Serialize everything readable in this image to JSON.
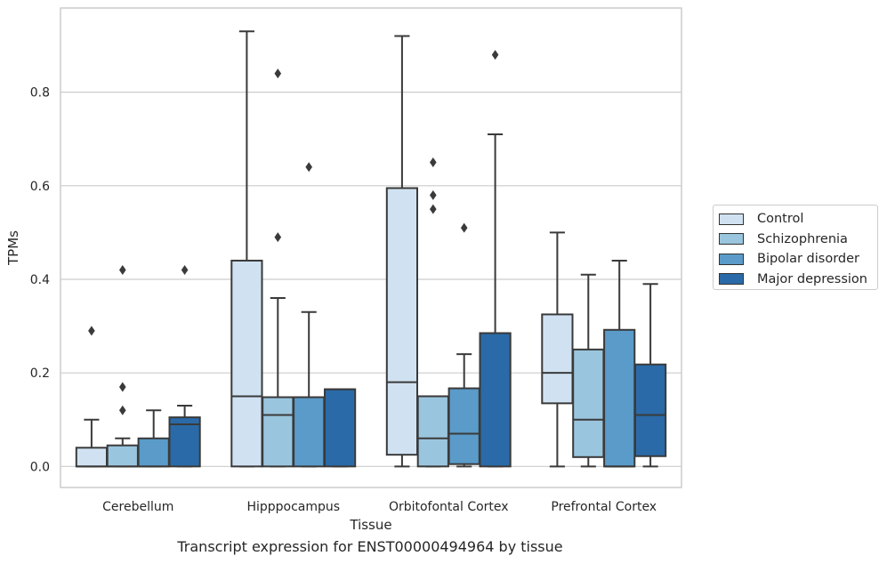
{
  "caption": "Transcript expression for ENST00000494964 by tissue",
  "chart_data": {
    "type": "boxplot",
    "title": "",
    "xlabel": "Tissue",
    "ylabel": "TPMs",
    "ylim": [
      -0.045,
      0.98
    ],
    "yticks": [
      0.0,
      0.2,
      0.4,
      0.6,
      0.8
    ],
    "ytick_labels": [
      "0.0",
      "0.2",
      "0.4",
      "0.6",
      "0.8"
    ],
    "grid": "horizontal",
    "legend_position": "outside-right",
    "categories": [
      "Cerebellum",
      "Hipppocampus",
      "Orbitofontal Cortex",
      "Prefrontal Cortex"
    ],
    "series": [
      {
        "name": "Control",
        "color": "#d0e2f2",
        "boxes": [
          {
            "whisker_low": 0.0,
            "q1": 0.0,
            "median": 0.0,
            "q3": 0.04,
            "whisker_high": 0.1,
            "outliers": [
              0.29
            ]
          },
          {
            "whisker_low": 0.0,
            "q1": 0.0,
            "median": 0.15,
            "q3": 0.44,
            "whisker_high": 0.93,
            "outliers": []
          },
          {
            "whisker_low": 0.0,
            "q1": 0.025,
            "median": 0.18,
            "q3": 0.595,
            "whisker_high": 0.92,
            "outliers": []
          },
          {
            "whisker_low": 0.0,
            "q1": 0.135,
            "median": 0.2,
            "q3": 0.325,
            "whisker_high": 0.5,
            "outliers": []
          }
        ]
      },
      {
        "name": "Schizophrenia",
        "color": "#9ac5de",
        "boxes": [
          {
            "whisker_low": 0.0,
            "q1": 0.0,
            "median": 0.0,
            "q3": 0.045,
            "whisker_high": 0.06,
            "outliers": [
              0.12,
              0.17,
              0.42
            ]
          },
          {
            "whisker_low": 0.0,
            "q1": 0.0,
            "median": 0.11,
            "q3": 0.148,
            "whisker_high": 0.36,
            "outliers": [
              0.49,
              0.84
            ]
          },
          {
            "whisker_low": 0.0,
            "q1": 0.0,
            "median": 0.06,
            "q3": 0.15,
            "whisker_high": 0.15,
            "outliers": [
              0.55,
              0.58,
              0.65
            ]
          },
          {
            "whisker_low": 0.0,
            "q1": 0.02,
            "median": 0.1,
            "q3": 0.25,
            "whisker_high": 0.41,
            "outliers": []
          }
        ]
      },
      {
        "name": "Bipolar disorder",
        "color": "#5a9bc9",
        "boxes": [
          {
            "whisker_low": 0.0,
            "q1": 0.0,
            "median": 0.0,
            "q3": 0.06,
            "whisker_high": 0.12,
            "outliers": []
          },
          {
            "whisker_low": 0.0,
            "q1": 0.0,
            "median": 0.148,
            "q3": 0.148,
            "whisker_high": 0.33,
            "outliers": [
              0.64
            ]
          },
          {
            "whisker_low": 0.0,
            "q1": 0.005,
            "median": 0.07,
            "q3": 0.167,
            "whisker_high": 0.24,
            "outliers": [
              0.51
            ]
          },
          {
            "whisker_low": 0.0,
            "q1": 0.0,
            "median": 0.0,
            "q3": 0.292,
            "whisker_high": 0.44,
            "outliers": []
          }
        ]
      },
      {
        "name": "Major depression",
        "color": "#2a6aa8",
        "boxes": [
          {
            "whisker_low": 0.0,
            "q1": 0.0,
            "median": 0.09,
            "q3": 0.105,
            "whisker_high": 0.13,
            "outliers": [
              0.42
            ]
          },
          {
            "whisker_low": 0.0,
            "q1": 0.0,
            "median": 0.165,
            "q3": 0.165,
            "whisker_high": 0.165,
            "outliers": []
          },
          {
            "whisker_low": 0.0,
            "q1": 0.0,
            "median": 0.285,
            "q3": 0.285,
            "whisker_high": 0.71,
            "outliers": [
              0.88
            ]
          },
          {
            "whisker_low": 0.0,
            "q1": 0.022,
            "median": 0.11,
            "q3": 0.218,
            "whisker_high": 0.39,
            "outliers": []
          }
        ]
      }
    ]
  }
}
